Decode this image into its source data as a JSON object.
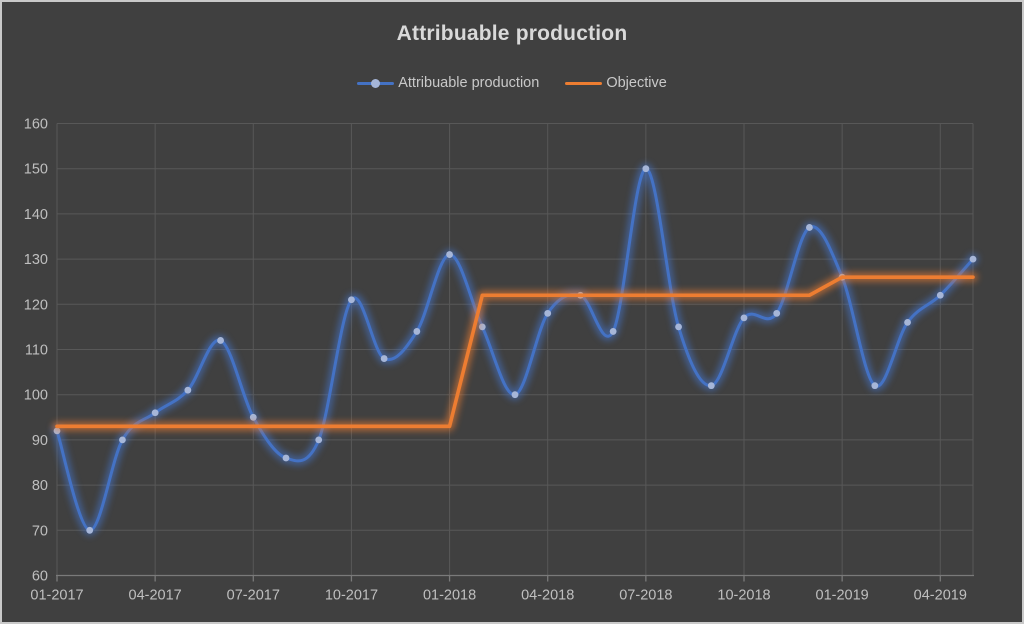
{
  "chart_data": {
    "type": "line",
    "title": "Attribuable production",
    "categories": [
      "01-2017",
      "02-2017",
      "03-2017",
      "04-2017",
      "05-2017",
      "06-2017",
      "07-2017",
      "08-2017",
      "09-2017",
      "10-2017",
      "11-2017",
      "12-2017",
      "01-2018",
      "02-2018",
      "03-2018",
      "04-2018",
      "05-2018",
      "06-2018",
      "07-2018",
      "08-2018",
      "09-2018",
      "10-2018",
      "11-2018",
      "12-2018",
      "01-2019",
      "02-2019",
      "03-2019",
      "04-2019",
      "05-2019"
    ],
    "xticklabels": [
      "01-2017",
      "04-2017",
      "07-2017",
      "10-2017",
      "01-2018",
      "04-2018",
      "07-2018",
      "10-2018",
      "01-2019",
      "04-2019"
    ],
    "xtick_every": 3,
    "ylim": [
      60,
      160
    ],
    "ytick_step": 10,
    "yticks": [
      60,
      70,
      80,
      90,
      100,
      110,
      120,
      130,
      140,
      150,
      160
    ],
    "grid": true,
    "legend_position": "top",
    "series": [
      {
        "name": "Attribuable production",
        "color": "#4472C4",
        "marker_color": "#A6B6D8",
        "smooth": true,
        "markers": true,
        "glow": true,
        "values": [
          92,
          70,
          90,
          96,
          101,
          112,
          95,
          86,
          90,
          121,
          108,
          114,
          131,
          115,
          100,
          118,
          122,
          114,
          150,
          115,
          102,
          117,
          118,
          137,
          126,
          102,
          116,
          122,
          130
        ]
      },
      {
        "name": "Objective",
        "color": "#ED7D31",
        "marker_color": null,
        "smooth": false,
        "markers": false,
        "glow": true,
        "values": [
          93,
          93,
          93,
          93,
          93,
          93,
          93,
          93,
          93,
          93,
          93,
          93,
          93,
          122,
          122,
          122,
          122,
          122,
          122,
          122,
          122,
          122,
          122,
          122,
          126,
          126,
          126,
          126,
          126
        ]
      }
    ]
  },
  "style": {
    "background": "#404040",
    "frame_border": "#C9C9C9",
    "gridline": "#585858",
    "axis_line": "#7A7A7A",
    "tick_label_color": "#BFBFBF",
    "title_color": "#D9D9D9",
    "legend_text_color": "#C9C9C9"
  }
}
